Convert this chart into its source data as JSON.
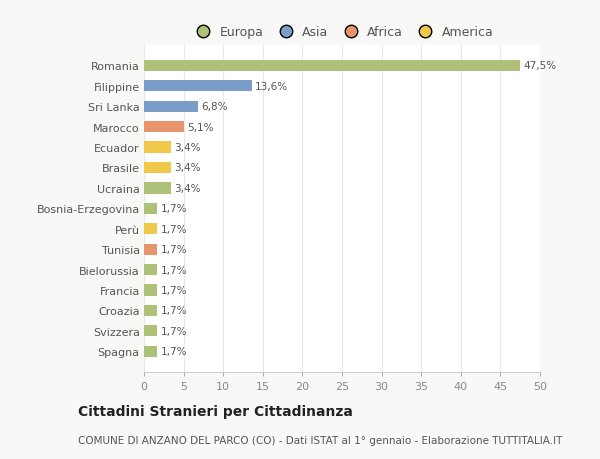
{
  "categories": [
    "Spagna",
    "Svizzera",
    "Croazia",
    "Francia",
    "Bielorussia",
    "Tunisia",
    "Perù",
    "Bosnia-Erzegovina",
    "Ucraina",
    "Brasile",
    "Ecuador",
    "Marocco",
    "Sri Lanka",
    "Filippine",
    "Romania"
  ],
  "values": [
    1.7,
    1.7,
    1.7,
    1.7,
    1.7,
    1.7,
    1.7,
    1.7,
    3.4,
    3.4,
    3.4,
    5.1,
    6.8,
    13.6,
    47.5
  ],
  "labels": [
    "1,7%",
    "1,7%",
    "1,7%",
    "1,7%",
    "1,7%",
    "1,7%",
    "1,7%",
    "1,7%",
    "3,4%",
    "3,4%",
    "3,4%",
    "5,1%",
    "6,8%",
    "13,6%",
    "47,5%"
  ],
  "colors": [
    "#adc178",
    "#adc178",
    "#adc178",
    "#adc178",
    "#adc178",
    "#e8956d",
    "#f0c84a",
    "#adc178",
    "#adc178",
    "#f0c84a",
    "#f0c84a",
    "#e8956d",
    "#7b9ec8",
    "#7b9ec8",
    "#adc178"
  ],
  "legend_labels": [
    "Europa",
    "Asia",
    "Africa",
    "America"
  ],
  "legend_colors": [
    "#adc178",
    "#7b9ec8",
    "#e8956d",
    "#f0c84a"
  ],
  "xlim": [
    0,
    50
  ],
  "xticks": [
    0,
    5,
    10,
    15,
    20,
    25,
    30,
    35,
    40,
    45,
    50
  ],
  "title": "Cittadini Stranieri per Cittadinanza",
  "subtitle": "COMUNE DI ANZANO DEL PARCO (CO) - Dati ISTAT al 1° gennaio - Elaborazione TUTTITALIA.IT",
  "bg_color": "#f8f8f6",
  "plot_bg": "#ffffff",
  "bar_height": 0.55,
  "label_fontsize": 7.5,
  "tick_fontsize": 8,
  "legend_fontsize": 9,
  "title_fontsize": 10,
  "subtitle_fontsize": 7.5
}
